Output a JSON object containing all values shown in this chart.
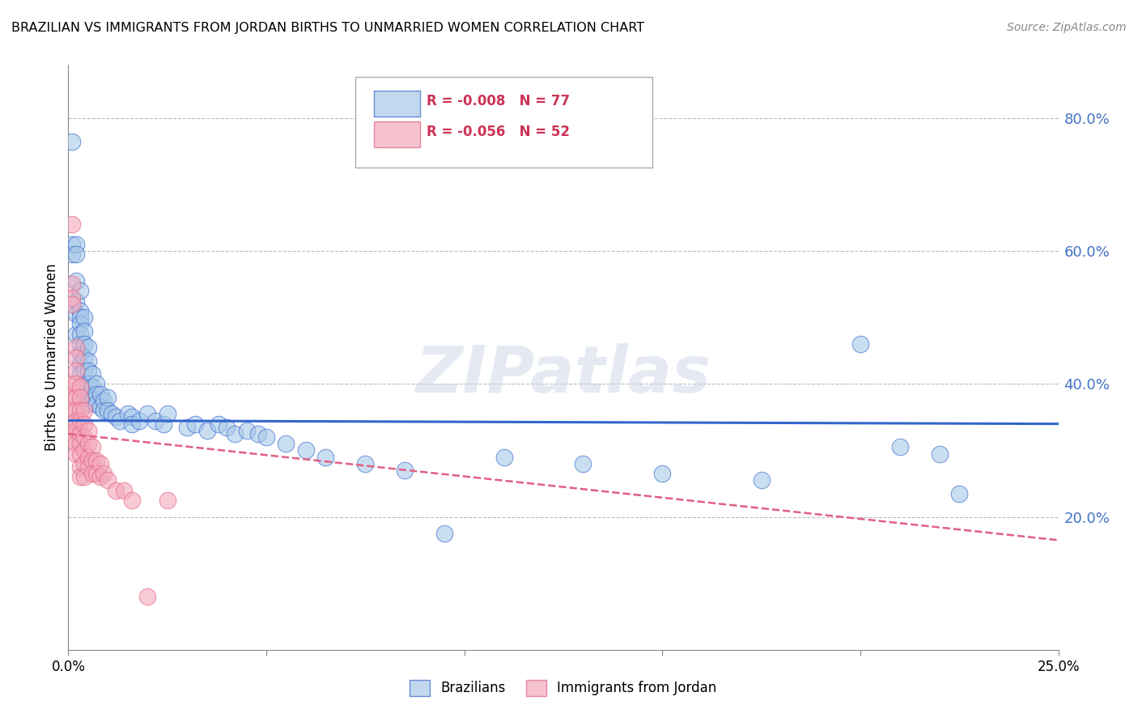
{
  "title": "BRAZILIAN VS IMMIGRANTS FROM JORDAN BIRTHS TO UNMARRIED WOMEN CORRELATION CHART",
  "source": "Source: ZipAtlas.com",
  "ylabel": "Births to Unmarried Women",
  "ytick_labels": [
    "20.0%",
    "40.0%",
    "60.0%",
    "80.0%"
  ],
  "ytick_values": [
    0.2,
    0.4,
    0.6,
    0.8
  ],
  "xlim": [
    0.0,
    0.25
  ],
  "ylim": [
    0.0,
    0.88
  ],
  "legend_blue_label": "Brazilians",
  "legend_pink_label": "Immigrants from Jordan",
  "blue_color": "#a8c8e8",
  "pink_color": "#f4a8bc",
  "trendline_blue_color": "#3366cc",
  "trendline_pink_color": "#e06080",
  "watermark": "ZIPatlas",
  "blue_trendline": [
    0.0,
    0.25,
    0.345,
    0.34
  ],
  "pink_trendline": [
    0.0,
    0.25,
    0.325,
    0.165
  ],
  "blue_x": [
    0.001,
    0.001,
    0.001,
    0.002,
    0.002,
    0.002,
    0.002,
    0.002,
    0.002,
    0.003,
    0.003,
    0.003,
    0.003,
    0.003,
    0.003,
    0.003,
    0.003,
    0.003,
    0.004,
    0.004,
    0.004,
    0.004,
    0.004,
    0.004,
    0.004,
    0.005,
    0.005,
    0.005,
    0.005,
    0.005,
    0.005,
    0.006,
    0.006,
    0.006,
    0.007,
    0.007,
    0.007,
    0.008,
    0.008,
    0.009,
    0.009,
    0.01,
    0.01,
    0.011,
    0.012,
    0.013,
    0.015,
    0.016,
    0.016,
    0.018,
    0.02,
    0.022,
    0.024,
    0.025,
    0.03,
    0.032,
    0.035,
    0.038,
    0.04,
    0.042,
    0.045,
    0.048,
    0.05,
    0.055,
    0.06,
    0.065,
    0.075,
    0.085,
    0.095,
    0.11,
    0.13,
    0.15,
    0.175,
    0.2,
    0.21,
    0.22,
    0.225
  ],
  "blue_y": [
    0.765,
    0.61,
    0.595,
    0.61,
    0.595,
    0.555,
    0.525,
    0.505,
    0.475,
    0.54,
    0.51,
    0.5,
    0.49,
    0.475,
    0.46,
    0.445,
    0.43,
    0.415,
    0.5,
    0.48,
    0.46,
    0.44,
    0.42,
    0.4,
    0.38,
    0.455,
    0.435,
    0.42,
    0.4,
    0.385,
    0.37,
    0.415,
    0.395,
    0.375,
    0.4,
    0.385,
    0.37,
    0.385,
    0.365,
    0.375,
    0.36,
    0.38,
    0.36,
    0.355,
    0.35,
    0.345,
    0.355,
    0.35,
    0.34,
    0.345,
    0.355,
    0.345,
    0.34,
    0.355,
    0.335,
    0.34,
    0.33,
    0.34,
    0.335,
    0.325,
    0.33,
    0.325,
    0.32,
    0.31,
    0.3,
    0.29,
    0.28,
    0.27,
    0.175,
    0.29,
    0.28,
    0.265,
    0.255,
    0.46,
    0.305,
    0.295,
    0.235
  ],
  "pink_x": [
    0.001,
    0.001,
    0.001,
    0.001,
    0.001,
    0.001,
    0.001,
    0.001,
    0.001,
    0.002,
    0.002,
    0.002,
    0.002,
    0.002,
    0.002,
    0.002,
    0.002,
    0.002,
    0.002,
    0.003,
    0.003,
    0.003,
    0.003,
    0.003,
    0.003,
    0.003,
    0.003,
    0.003,
    0.004,
    0.004,
    0.004,
    0.004,
    0.004,
    0.004,
    0.005,
    0.005,
    0.005,
    0.005,
    0.006,
    0.006,
    0.006,
    0.007,
    0.007,
    0.008,
    0.008,
    0.009,
    0.01,
    0.012,
    0.014,
    0.016,
    0.02,
    0.025
  ],
  "pink_y": [
    0.64,
    0.55,
    0.53,
    0.52,
    0.4,
    0.38,
    0.36,
    0.34,
    0.32,
    0.455,
    0.44,
    0.42,
    0.4,
    0.38,
    0.36,
    0.345,
    0.33,
    0.31,
    0.295,
    0.395,
    0.38,
    0.36,
    0.345,
    0.325,
    0.31,
    0.295,
    0.275,
    0.26,
    0.36,
    0.34,
    0.32,
    0.3,
    0.28,
    0.26,
    0.33,
    0.31,
    0.29,
    0.275,
    0.305,
    0.285,
    0.265,
    0.285,
    0.265,
    0.28,
    0.26,
    0.265,
    0.255,
    0.24,
    0.24,
    0.225,
    0.08,
    0.225
  ]
}
